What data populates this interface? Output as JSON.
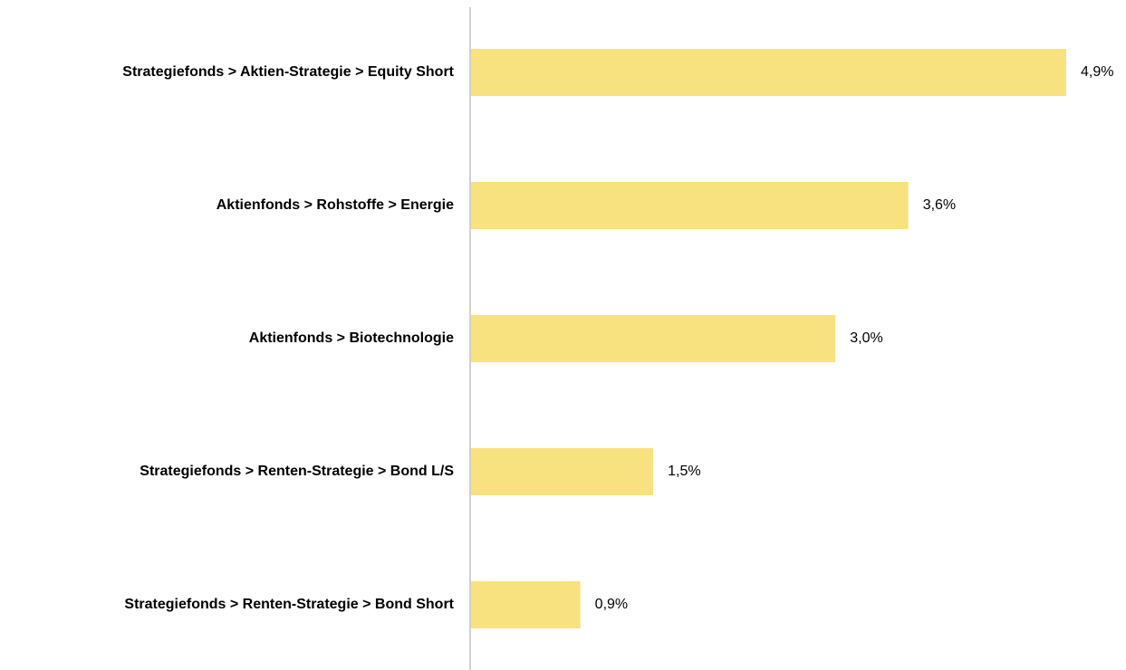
{
  "chart_data": {
    "type": "bar",
    "orientation": "horizontal",
    "categories": [
      "Strategiefonds > Aktien-Strategie > Equity Short",
      "Aktienfonds > Rohstoffe > Energie",
      "Aktienfonds > Biotechnologie",
      "Strategiefonds > Renten-Strategie > Bond L/S",
      "Strategiefonds > Renten-Strategie > Bond Short"
    ],
    "values": [
      4.9,
      3.6,
      3.0,
      1.5,
      0.9
    ],
    "value_labels": [
      "4,9%",
      "3,6%",
      "3,0%",
      "1,5%",
      "0,9%"
    ],
    "color": "#f7e27f"
  }
}
